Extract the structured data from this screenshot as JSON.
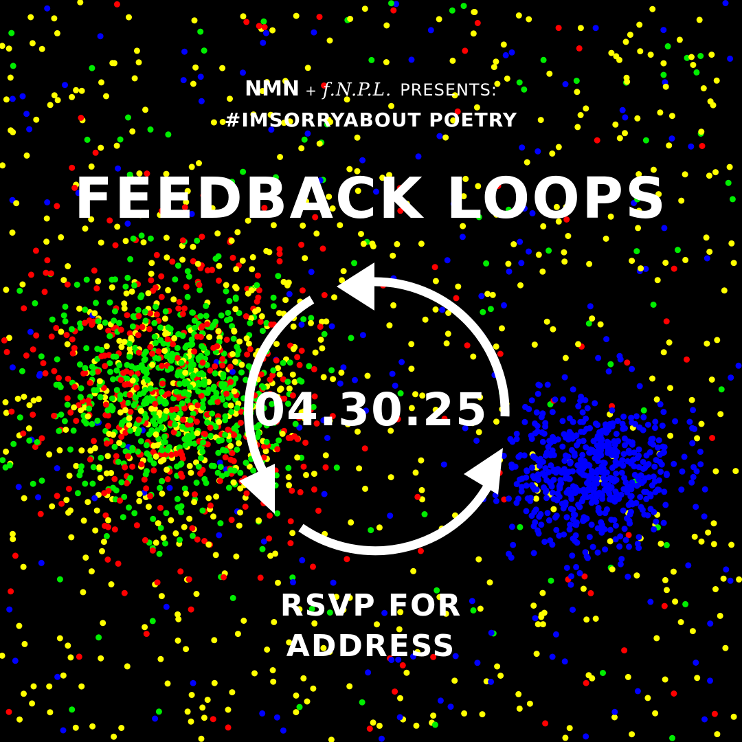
{
  "header": {
    "brand_primary": "NMN",
    "plus": "+",
    "brand_secondary": "f.N.P.L.",
    "presents": "PRESENTS:",
    "subtitle": "#IMSORRYABOUT POETRY"
  },
  "title": "FEEDBACK LOOPS",
  "date": "04.30.25",
  "rsvp": {
    "line1": "RSVP FOR",
    "line2": "ADDRESS"
  },
  "icons": {
    "cycle": "cycle-arrows-icon"
  },
  "colors": {
    "background": "#000000",
    "text": "#ffffff",
    "dot_red": "#ff0000",
    "dot_green": "#00ee00",
    "dot_yellow": "#ffff00",
    "dot_blue": "#0000ff"
  }
}
